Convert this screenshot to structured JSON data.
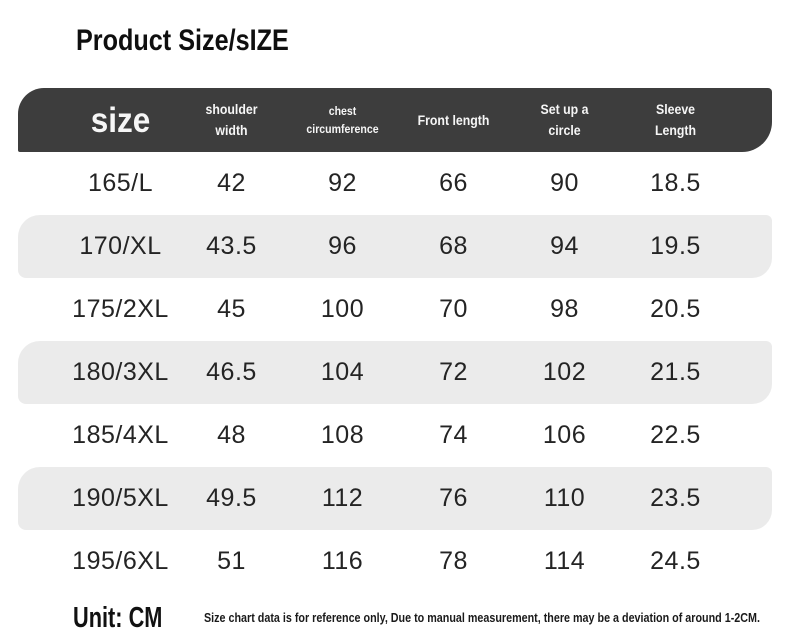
{
  "title": "Product Size/sIZE",
  "colors": {
    "header_bg": "#3D3D3D",
    "header_text": "#F6F6F6",
    "stripe_bg": "#EBEBEB",
    "body_text": "#242424",
    "page_bg": "#FFFFFF"
  },
  "table": {
    "columns": [
      "size",
      "shoulder\nwidth",
      "chest\ncircumference",
      "Front length",
      "Set up a\ncircle",
      "Sleeve\nLength"
    ],
    "rows": [
      [
        "165/L",
        "42",
        "92",
        "66",
        "90",
        "18.5"
      ],
      [
        "170/XL",
        "43.5",
        "96",
        "68",
        "94",
        "19.5"
      ],
      [
        "175/2XL",
        "45",
        "100",
        "70",
        "98",
        "20.5"
      ],
      [
        "180/3XL",
        "46.5",
        "104",
        "72",
        "102",
        "21.5"
      ],
      [
        "185/4XL",
        "48",
        "108",
        "74",
        "106",
        "22.5"
      ],
      [
        "190/5XL",
        "49.5",
        "112",
        "76",
        "110",
        "23.5"
      ],
      [
        "195/6XL",
        "51",
        "116",
        "78",
        "114",
        "24.5"
      ]
    ]
  },
  "footer": {
    "unit": "Unit: CM",
    "note": "Size chart data is for reference only, Due to manual measurement, there may be a deviation of around 1-2CM."
  }
}
